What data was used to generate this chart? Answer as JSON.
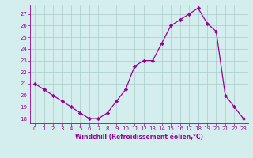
{
  "x": [
    0,
    1,
    2,
    3,
    4,
    5,
    6,
    7,
    8,
    9,
    10,
    11,
    12,
    13,
    14,
    15,
    16,
    17,
    18,
    19,
    20,
    21,
    22,
    23
  ],
  "windchill": [
    21.0,
    20.5,
    20.0,
    19.5,
    19.0,
    18.5,
    18.0,
    18.0,
    18.5,
    19.5,
    20.5,
    22.5,
    23.0,
    23.0,
    24.5,
    26.0,
    26.5,
    27.0,
    27.5,
    26.2,
    25.5,
    20.0,
    19.0,
    18.0
  ],
  "ylim": [
    17.6,
    27.8
  ],
  "xlim": [
    -0.5,
    23.5
  ],
  "yticks": [
    18,
    19,
    20,
    21,
    22,
    23,
    24,
    25,
    26,
    27
  ],
  "xticks": [
    0,
    1,
    2,
    3,
    4,
    5,
    6,
    7,
    8,
    9,
    10,
    11,
    12,
    13,
    14,
    15,
    16,
    17,
    18,
    19,
    20,
    21,
    22,
    23
  ],
  "xlabel": "Windchill (Refroidissement éolien,°C)",
  "line_color": "#990099",
  "marker_color": "#990099",
  "bg_color": "#d4eeee",
  "grid_color": "#aacccc",
  "tick_color": "#990099",
  "label_color": "#990099",
  "tick_fontsize": 5.0,
  "label_fontsize": 5.5
}
